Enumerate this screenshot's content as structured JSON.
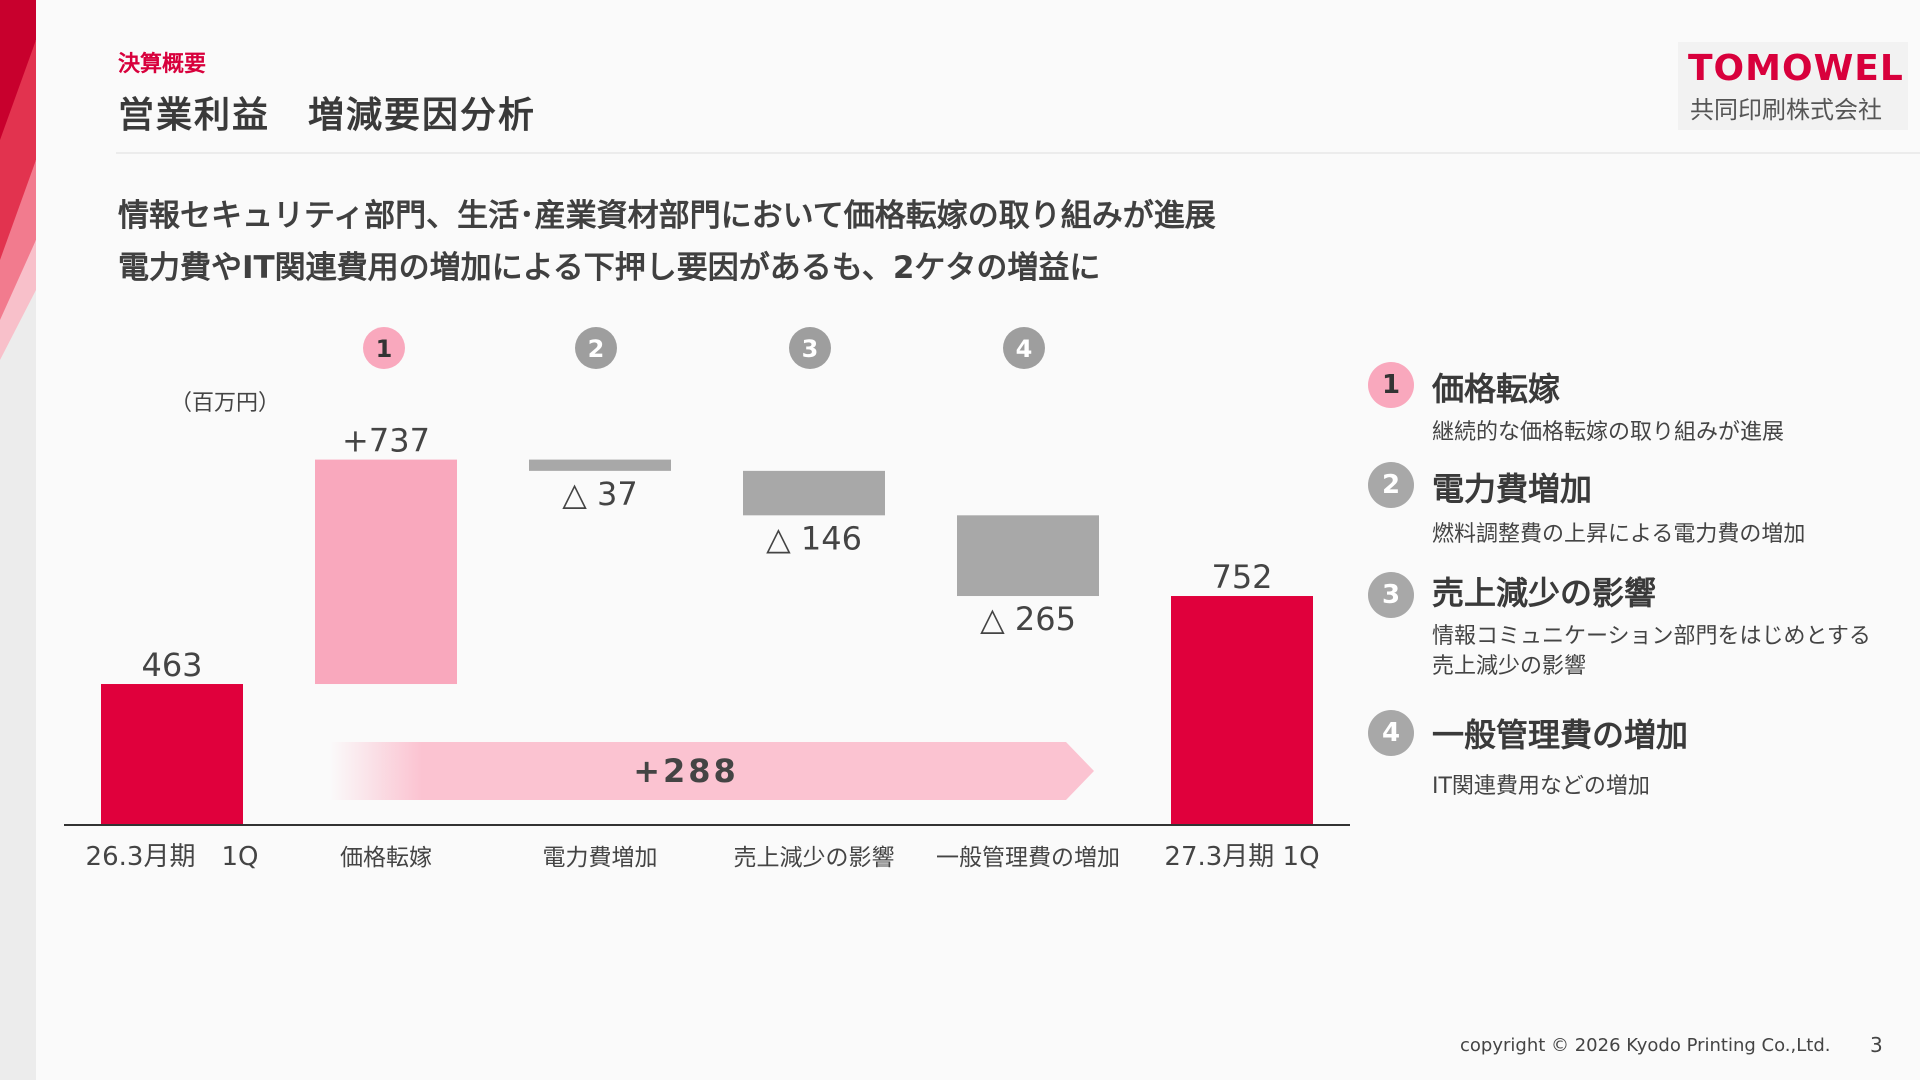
{
  "header": {
    "section_label": "決算概要",
    "title": "営業利益　増減要因分析",
    "logo_main": "TOMOWEL",
    "logo_sub": "共同印刷株式会社"
  },
  "headline": {
    "line1": "情報セキュリティ部門、生活･産業資材部門において価格転嫁の取り組みが進展",
    "line2": "電力費やIT関連費用の増加による下押し要因があるも、2ケタの増益に"
  },
  "chart_data": {
    "type": "bar",
    "subtype": "waterfall",
    "unit_label": "（百万円）",
    "categories": [
      "26.3月期　1Q",
      "価格転嫁",
      "電力費増加",
      "売上減少の影響",
      "一般管理費の増加",
      "27.3月期 1Q"
    ],
    "values": [
      463,
      737,
      -37,
      -146,
      -265,
      752
    ],
    "kinds": [
      "total",
      "delta",
      "delta",
      "delta",
      "delta",
      "total"
    ],
    "value_labels": [
      "463",
      "+737",
      "△ 37",
      "△ 146",
      "△ 265",
      "752"
    ],
    "badges": [
      "",
      "1",
      "2",
      "3",
      "4",
      ""
    ],
    "net_change_label": "+288",
    "ylim": [
      0,
      1250
    ],
    "colors": {
      "total": "#e0003c",
      "increase": "#f9a8bd",
      "decrease": "#a8a8a8",
      "net_arrow": "#fbc3d1"
    }
  },
  "legend": {
    "items": [
      {
        "badge": "1",
        "heading": "価格転嫁",
        "desc": "継続的な価格転嫁の取り組みが進展",
        "color": "#f9a8bd"
      },
      {
        "badge": "2",
        "heading": "電力費増加",
        "desc": "燃料調整費の上昇による電力費の増加",
        "color": "#a8a8a8"
      },
      {
        "badge": "3",
        "heading": "売上減少の影響",
        "desc": "情報コミュニケーション部門をはじめとする売上減少の影響",
        "color": "#a8a8a8"
      },
      {
        "badge": "4",
        "heading": "一般管理費の増加",
        "desc": "IT関連費用などの増加",
        "color": "#a8a8a8"
      }
    ]
  },
  "footer": {
    "copyright": "copyright © 2026 Kyodo Printing Co.,Ltd.",
    "page_number": "3"
  }
}
